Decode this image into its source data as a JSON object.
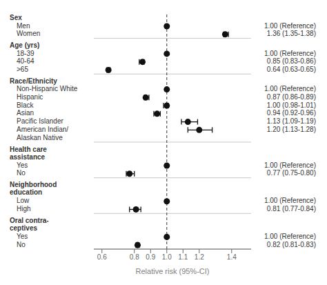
{
  "chart_data": {
    "type": "forest",
    "xlabel": "Relative risk (95%-CI)",
    "xlim": [
      0.55,
      1.52
    ],
    "xticks": [
      0.6,
      0.8,
      0.9,
      {
        "value": 1.0,
        "label": "1.0"
      },
      1.1,
      1.2,
      1.4
    ],
    "vline": 1.0,
    "color": "#111111",
    "sections": [
      {
        "header": "Sex",
        "rows": [
          {
            "label": "Men",
            "value": 1.0,
            "lo": 1.0,
            "hi": 1.0,
            "value_label": "1.00 (Reference)"
          },
          {
            "label": "Women",
            "value": 1.36,
            "lo": 1.35,
            "hi": 1.38,
            "value_label": "1.36 (1.35-1.38)"
          }
        ]
      },
      {
        "header": "Age (yrs)",
        "rows": [
          {
            "label": "18-39",
            "value": 1.0,
            "lo": 1.0,
            "hi": 1.0,
            "value_label": "1.00 (Reference)"
          },
          {
            "label": "40-64",
            "value": 0.85,
            "lo": 0.83,
            "hi": 0.86,
            "value_label": "0.85 (0.83-0.86)"
          },
          {
            "label": ">65",
            "value": 0.64,
            "lo": 0.63,
            "hi": 0.65,
            "value_label": "0.64 (0.63-0.65)"
          }
        ]
      },
      {
        "header": "Race/Ethnicity",
        "rows": [
          {
            "label": "Non-Hispanic White",
            "value": 1.0,
            "lo": 1.0,
            "hi": 1.0,
            "value_label": "1.00 (Reference)"
          },
          {
            "label": "Hispanic",
            "value": 0.87,
            "lo": 0.86,
            "hi": 0.89,
            "value_label": "0.87 (0.86-0.89)"
          },
          {
            "label": "Black",
            "value": 1.0,
            "lo": 0.98,
            "hi": 1.01,
            "value_label": "1.00 (0.98-1.01)"
          },
          {
            "label": "Asian",
            "value": 0.94,
            "lo": 0.92,
            "hi": 0.96,
            "value_label": "0.94 (0.92-0.96)"
          },
          {
            "label": "Pacific Islander",
            "value": 1.13,
            "lo": 1.09,
            "hi": 1.19,
            "value_label": "1.13 (1.09-1.19)"
          },
          {
            "label": "American Indian/",
            "value": 1.2,
            "lo": 1.13,
            "hi": 1.28,
            "value_label": "1.20 (1.13-1.28)"
          },
          {
            "label": "Alaskan Native",
            "value": null,
            "lo": null,
            "hi": null
          }
        ]
      },
      {
        "header": "Health care\nassistance",
        "rows": [
          {
            "label": "Yes",
            "value": 1.0,
            "lo": 1.0,
            "hi": 1.0,
            "value_label": "1.00 (Reference)"
          },
          {
            "label": "No",
            "value": 0.77,
            "lo": 0.75,
            "hi": 0.8,
            "value_label": "0.77 (0.75-0.80)"
          }
        ]
      },
      {
        "header": "Neighborhood\neducation",
        "rows": [
          {
            "label": "Low",
            "value": 1.0,
            "lo": 1.0,
            "hi": 1.0,
            "value_label": "1.00 (Reference)"
          },
          {
            "label": "High",
            "value": 0.81,
            "lo": 0.77,
            "hi": 0.84,
            "value_label": "0.81 (0.77-0.84)"
          }
        ]
      },
      {
        "header": "Oral contra-\nceptives",
        "rows": [
          {
            "label": "Yes",
            "value": 1.0,
            "lo": 1.0,
            "hi": 1.0,
            "value_label": "1.00 (Reference)"
          },
          {
            "label": "No",
            "value": 0.82,
            "lo": 0.81,
            "hi": 0.83,
            "value_label": "0.82 (0.81-0.83)"
          }
        ]
      }
    ]
  }
}
